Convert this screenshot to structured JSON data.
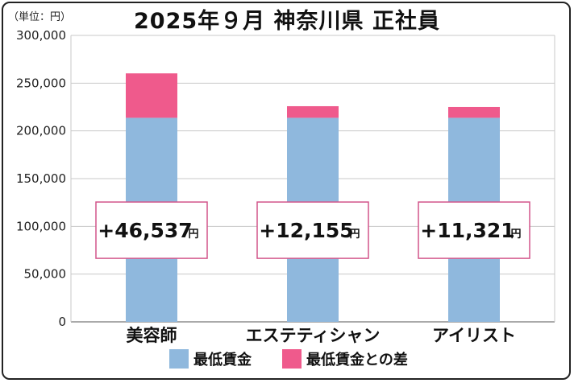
{
  "unit_label": "（単位：円）",
  "chart_data": {
    "type": "bar",
    "stacked": true,
    "title": "2025年９月 神奈川県 正社員",
    "categories": [
      "美容師",
      "エステティシャン",
      "アイリスト"
    ],
    "series": [
      {
        "name": "最低賃金",
        "values": [
          213700,
          213700,
          213700
        ],
        "color": "#8fb8dd"
      },
      {
        "name": "最低賃金との差",
        "values": [
          46537,
          12155,
          11321
        ],
        "color": "#ef5a8c"
      }
    ],
    "annotations": [
      {
        "text": "+46,537",
        "unit": "円"
      },
      {
        "text": "+12,155",
        "unit": "円"
      },
      {
        "text": "+11,321",
        "unit": "円"
      }
    ],
    "ylim": [
      0,
      300000
    ],
    "yticks": [
      0,
      50000,
      100000,
      150000,
      200000,
      250000,
      300000
    ],
    "ytick_labels": [
      "0",
      "50,000",
      "100,000",
      "150,000",
      "200,000",
      "250,000",
      "300,000"
    ],
    "grid": true,
    "legend_position": "bottom"
  }
}
